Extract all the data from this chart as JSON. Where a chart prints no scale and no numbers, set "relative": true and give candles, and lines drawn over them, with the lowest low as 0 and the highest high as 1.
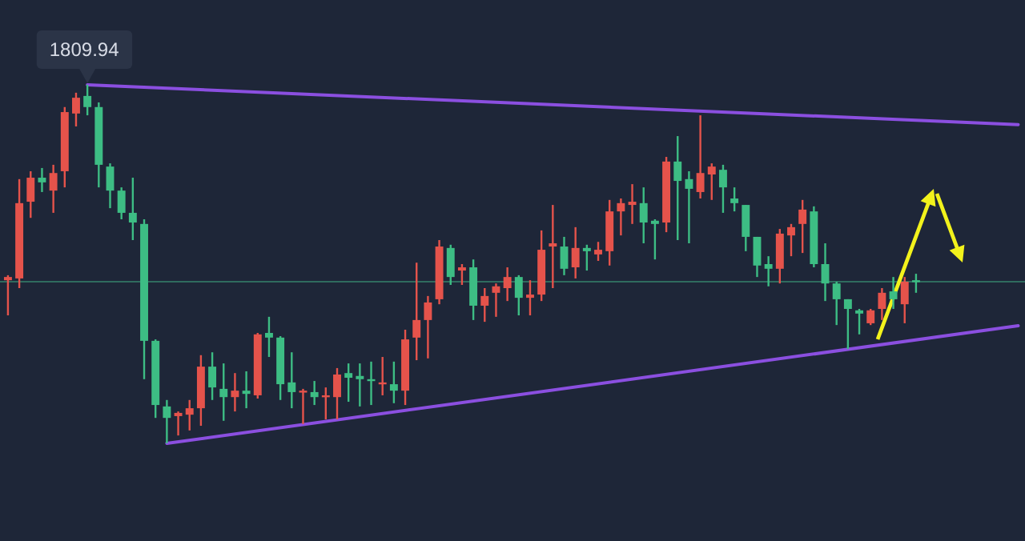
{
  "chart_data": {
    "type": "candlestick",
    "relative": true,
    "categories": [
      null,
      null,
      null,
      null,
      null,
      null,
      null,
      null,
      null,
      null,
      null,
      null,
      null,
      null,
      null,
      null,
      null,
      null,
      null,
      null,
      null,
      null,
      null,
      null,
      null,
      null,
      null,
      null,
      null,
      null,
      null,
      null,
      null,
      null,
      null,
      null,
      null,
      null,
      null,
      null,
      null,
      null,
      null,
      null,
      null,
      null,
      null,
      null,
      null,
      null,
      null,
      null,
      null,
      null,
      null,
      null,
      null,
      null,
      null,
      null,
      null,
      null,
      null,
      null,
      null,
      null,
      null,
      null,
      null,
      null,
      null,
      null,
      null,
      null,
      null,
      null,
      null,
      null,
      null,
      null,
      null,
      null,
      null,
      null,
      null,
      null,
      null,
      null,
      null,
      null
    ],
    "ohlc": [
      [
        0.455,
        0.469,
        0.357,
        0.464
      ],
      [
        0.46,
        0.737,
        0.433,
        0.67
      ],
      [
        0.674,
        0.759,
        0.629,
        0.741
      ],
      [
        0.741,
        0.768,
        0.701,
        0.728
      ],
      [
        0.705,
        0.777,
        0.643,
        0.754
      ],
      [
        0.759,
        0.938,
        0.714,
        0.924
      ],
      [
        0.92,
        0.978,
        0.884,
        0.964
      ],
      [
        0.969,
        1,
        0.915,
        0.938
      ],
      [
        0.938,
        0.951,
        0.714,
        0.777
      ],
      [
        0.772,
        0.781,
        0.656,
        0.705
      ],
      [
        0.705,
        0.714,
        0.625,
        0.643
      ],
      [
        0.643,
        0.741,
        0.567,
        0.616
      ],
      [
        0.612,
        0.625,
        0.179,
        0.286
      ],
      [
        0.286,
        0.29,
        0.071,
        0.107
      ],
      [
        0.103,
        0.121,
        0,
        0.071
      ],
      [
        0.076,
        0.089,
        0.022,
        0.085
      ],
      [
        0.08,
        0.121,
        0.036,
        0.098
      ],
      [
        0.098,
        0.246,
        0.049,
        0.214
      ],
      [
        0.214,
        0.254,
        0.121,
        0.156
      ],
      [
        0.152,
        0.223,
        0.063,
        0.129
      ],
      [
        0.129,
        0.196,
        0.089,
        0.147
      ],
      [
        0.147,
        0.201,
        0.098,
        0.138
      ],
      [
        0.134,
        0.308,
        0.125,
        0.304
      ],
      [
        0.308,
        0.353,
        0.241,
        0.295
      ],
      [
        0.295,
        0.299,
        0.121,
        0.165
      ],
      [
        0.17,
        0.254,
        0.098,
        0.143
      ],
      [
        0.143,
        0.152,
        0.054,
        0.147
      ],
      [
        0.143,
        0.174,
        0.107,
        0.129
      ],
      [
        0.129,
        0.156,
        0.067,
        0.134
      ],
      [
        0.129,
        0.21,
        0.067,
        0.192
      ],
      [
        0.196,
        0.223,
        0.116,
        0.183
      ],
      [
        0.188,
        0.223,
        0.103,
        0.179
      ],
      [
        0.179,
        0.228,
        0.107,
        0.174
      ],
      [
        0.165,
        0.241,
        0.134,
        0.17
      ],
      [
        0.165,
        0.228,
        0.112,
        0.147
      ],
      [
        0.147,
        0.317,
        0.107,
        0.29
      ],
      [
        0.295,
        0.504,
        0.232,
        0.344
      ],
      [
        0.344,
        0.411,
        0.237,
        0.393
      ],
      [
        0.402,
        0.567,
        0.388,
        0.549
      ],
      [
        0.545,
        0.554,
        0.442,
        0.464
      ],
      [
        0.482,
        0.5,
        0.442,
        0.491
      ],
      [
        0.491,
        0.513,
        0.344,
        0.384
      ],
      [
        0.384,
        0.433,
        0.339,
        0.411
      ],
      [
        0.42,
        0.446,
        0.353,
        0.438
      ],
      [
        0.433,
        0.491,
        0.397,
        0.464
      ],
      [
        0.464,
        0.469,
        0.357,
        0.406
      ],
      [
        0.406,
        0.455,
        0.357,
        0.415
      ],
      [
        0.415,
        0.594,
        0.397,
        0.54
      ],
      [
        0.549,
        0.665,
        0.433,
        0.558
      ],
      [
        0.549,
        0.576,
        0.469,
        0.487
      ],
      [
        0.491,
        0.603,
        0.46,
        0.545
      ],
      [
        0.545,
        0.554,
        0.482,
        0.536
      ],
      [
        0.527,
        0.562,
        0.509,
        0.54
      ],
      [
        0.536,
        0.679,
        0.496,
        0.647
      ],
      [
        0.647,
        0.683,
        0.58,
        0.67
      ],
      [
        0.665,
        0.723,
        0.612,
        0.674
      ],
      [
        0.67,
        0.714,
        0.558,
        0.616
      ],
      [
        0.621,
        0.625,
        0.513,
        0.612
      ],
      [
        0.616,
        0.799,
        0.589,
        0.786
      ],
      [
        0.786,
        0.857,
        0.567,
        0.732
      ],
      [
        0.737,
        0.759,
        0.558,
        0.71
      ],
      [
        0.701,
        0.915,
        0.683,
        0.754
      ],
      [
        0.75,
        0.781,
        0.679,
        0.772
      ],
      [
        0.763,
        0.777,
        0.643,
        0.714
      ],
      [
        0.683,
        0.714,
        0.647,
        0.67
      ],
      [
        0.665,
        0.665,
        0.536,
        0.576
      ],
      [
        0.576,
        0.576,
        0.464,
        0.496
      ],
      [
        0.5,
        0.522,
        0.438,
        0.487
      ],
      [
        0.487,
        0.598,
        0.446,
        0.585
      ],
      [
        0.58,
        0.612,
        0.522,
        0.603
      ],
      [
        0.612,
        0.679,
        0.531,
        0.652
      ],
      [
        0.647,
        0.661,
        0.491,
        0.5
      ],
      [
        0.5,
        0.558,
        0.397,
        0.446
      ],
      [
        0.446,
        0.451,
        0.33,
        0.402
      ],
      [
        0.402,
        0.402,
        0.263,
        0.375
      ],
      [
        0.371,
        0.375,
        0.304,
        0.362
      ],
      [
        0.335,
        0.375,
        0.33,
        0.371
      ],
      [
        0.375,
        0.433,
        0.344,
        0.42
      ],
      [
        0.424,
        0.464,
        0.375,
        0.402
      ],
      [
        0.388,
        0.464,
        0.335,
        0.451
      ],
      [
        0.455,
        0.473,
        0.42,
        0.451
      ],
      null,
      null,
      null,
      null,
      null,
      null,
      null,
      null,
      null
    ],
    "colors": [
      "#e5534b",
      "#e5534b",
      "#e5534b",
      "#3dbd84",
      "#e5534b",
      "#e5534b",
      "#e5534b",
      "#3dbd84",
      "#3dbd84",
      "#3dbd84",
      "#3dbd84",
      "#3dbd84",
      "#3dbd84",
      "#3dbd84",
      "#3dbd84",
      "#e5534b",
      "#e5534b",
      "#e5534b",
      "#3dbd84",
      "#3dbd84",
      "#e5534b",
      "#3dbd84",
      "#e5534b",
      "#3dbd84",
      "#3dbd84",
      "#3dbd84",
      "#e5534b",
      "#3dbd84",
      "#e5534b",
      "#e5534b",
      "#3dbd84",
      "#3dbd84",
      "#3dbd84",
      "#e5534b",
      "#3dbd84",
      "#e5534b",
      "#e5534b",
      "#e5534b",
      "#e5534b",
      "#3dbd84",
      "#e5534b",
      "#3dbd84",
      "#e5534b",
      "#e5534b",
      "#e5534b",
      "#3dbd84",
      "#e5534b",
      "#e5534b",
      "#e5534b",
      "#3dbd84",
      "#e5534b",
      "#3dbd84",
      "#e5534b",
      "#e5534b",
      "#e5534b",
      "#e5534b",
      "#3dbd84",
      "#3dbd84",
      "#e5534b",
      "#3dbd84",
      "#3dbd84",
      "#e5534b",
      "#e5534b",
      "#3dbd84",
      "#3dbd84",
      "#3dbd84",
      "#3dbd84",
      "#3dbd84",
      "#e5534b",
      "#e5534b",
      "#e5534b",
      "#3dbd84",
      "#3dbd84",
      "#3dbd84",
      "#3dbd84",
      "#3dbd84",
      "#e5534b",
      "#e5534b",
      "#3dbd84",
      "#e5534b",
      "#3dbd84",
      null,
      null,
      null,
      null,
      null,
      null,
      null,
      null,
      null
    ],
    "series": [
      {
        "type": "line",
        "values": [
          null,
          null,
          null,
          null,
          null,
          null,
          null,
          1,
          null,
          null,
          null,
          null,
          null,
          null,
          null,
          null,
          null,
          null,
          null,
          null,
          null,
          null,
          null,
          null,
          null,
          null,
          null,
          null,
          null,
          null,
          null,
          null,
          null,
          null,
          null,
          null,
          null,
          null,
          null,
          null,
          null,
          null,
          null,
          null,
          null,
          null,
          null,
          null,
          null,
          null,
          null,
          null,
          null,
          null,
          null,
          null,
          null,
          null,
          null,
          null,
          null,
          null,
          null,
          null,
          null,
          null,
          null,
          null,
          null,
          null,
          null,
          null,
          null,
          null,
          null,
          null,
          null,
          null,
          null,
          null,
          null,
          null,
          null,
          null,
          null,
          null,
          null,
          null,
          null,
          0.889
        ],
        "color": "#8b4fe0"
      },
      {
        "type": "line",
        "values": [
          null,
          null,
          null,
          null,
          null,
          null,
          null,
          null,
          null,
          null,
          null,
          null,
          null,
          null,
          0,
          null,
          null,
          null,
          null,
          null,
          null,
          null,
          null,
          null,
          null,
          null,
          null,
          null,
          null,
          null,
          null,
          null,
          null,
          null,
          null,
          null,
          null,
          null,
          null,
          null,
          null,
          null,
          null,
          null,
          null,
          null,
          null,
          null,
          null,
          null,
          null,
          null,
          null,
          null,
          null,
          null,
          null,
          null,
          null,
          null,
          null,
          null,
          null,
          null,
          null,
          null,
          null,
          null,
          null,
          null,
          null,
          null,
          null,
          null,
          null,
          null,
          null,
          null,
          null,
          null,
          null,
          null,
          null,
          null,
          null,
          null,
          null,
          null,
          null,
          0.328
        ],
        "color": "#8b4fe0"
      }
    ],
    "ref_lines": [
      {
        "axis": "y",
        "value": 0.451,
        "color": "#2f6b5e"
      }
    ],
    "annotations": [
      {
        "text": "1809.94",
        "y": 1
      }
    ]
  }
}
